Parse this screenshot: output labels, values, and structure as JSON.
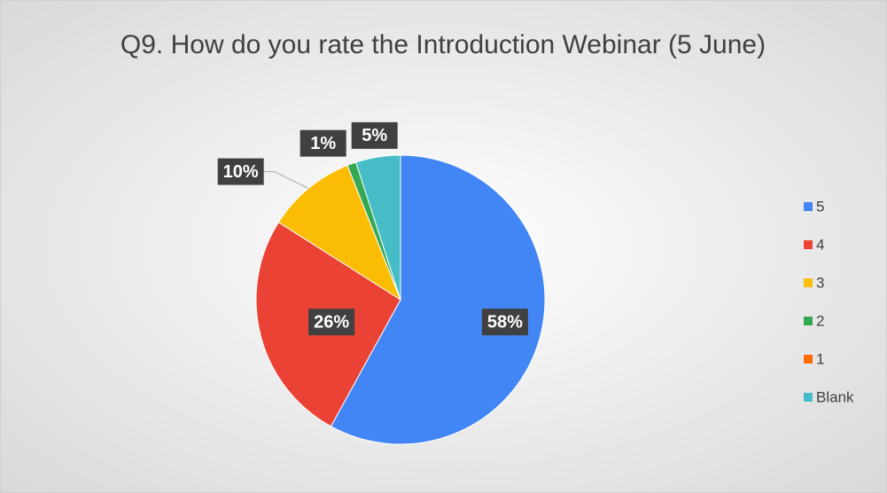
{
  "chart_data": {
    "type": "pie",
    "title": "Q9. How do you rate the Introduction Webinar (5 June)",
    "categories": [
      "5",
      "4",
      "3",
      "2",
      "1",
      "Blank"
    ],
    "values": [
      58,
      26,
      10,
      1,
      0,
      5
    ],
    "value_labels": [
      "58%",
      "26%",
      "10%",
      "1%",
      null,
      "5%"
    ],
    "colors": [
      "#4285f4",
      "#ea4335",
      "#fbbc04",
      "#34a853",
      "#ff6d01",
      "#46bdc6"
    ],
    "legend": "right"
  }
}
